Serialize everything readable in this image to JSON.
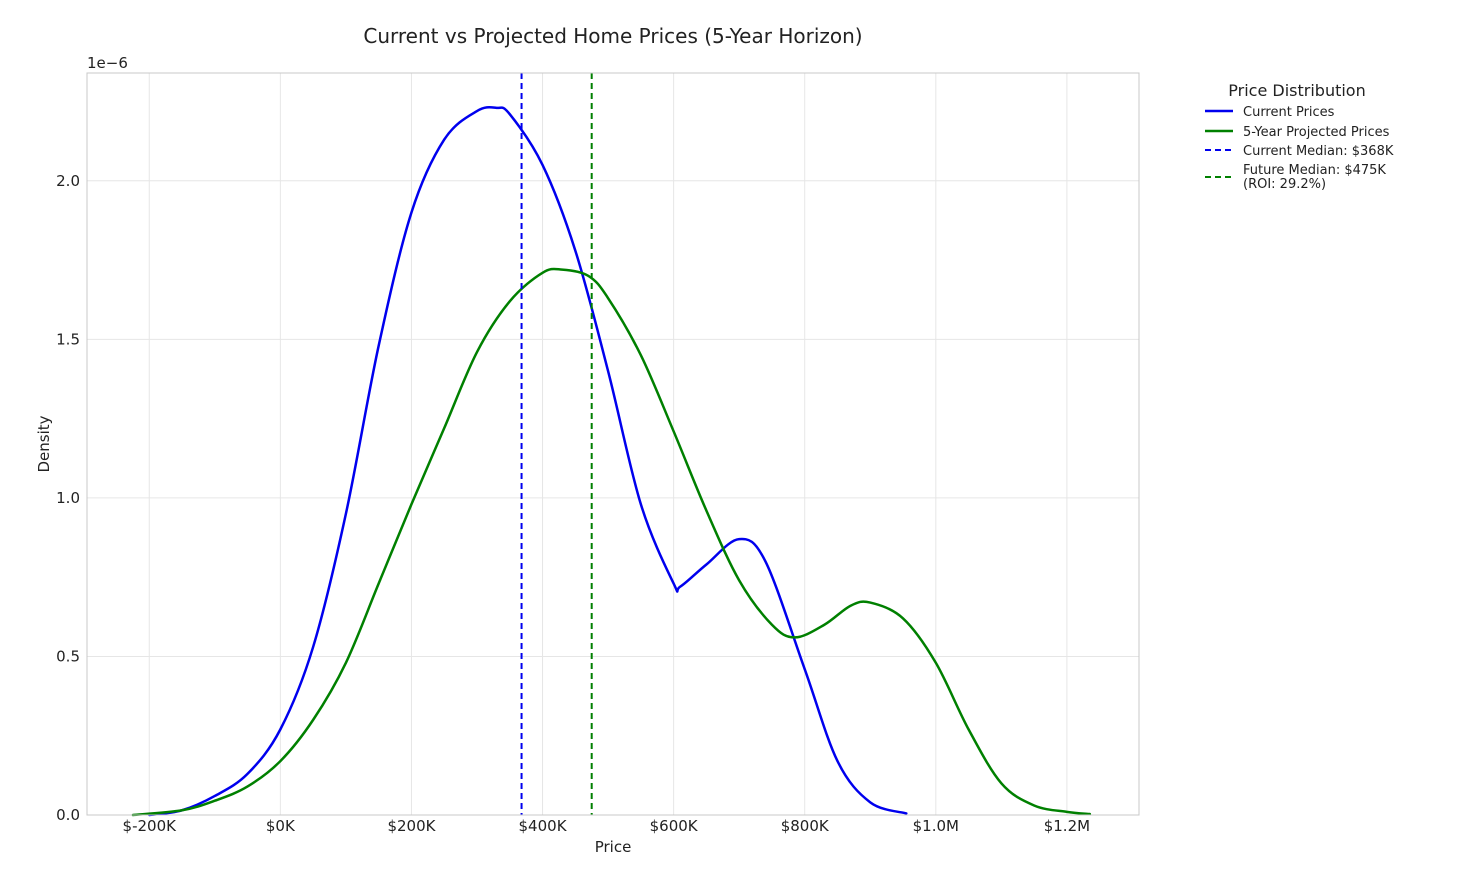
{
  "chart_data": {
    "type": "line",
    "title": "Current vs Projected Home Prices (5-Year Horizon)",
    "xlabel": "Price",
    "ylabel": "Density",
    "y_offset_label": "1e−6",
    "xlim": [
      -295000,
      1310000
    ],
    "ylim": [
      0,
      2.34
    ],
    "grid": true,
    "legend_placement": "outside-top-right",
    "x_ticks": [
      {
        "value": -200000,
        "label": "$-200K"
      },
      {
        "value": 0,
        "label": "$0K"
      },
      {
        "value": 200000,
        "label": "$200K"
      },
      {
        "value": 400000,
        "label": "$400K"
      },
      {
        "value": 600000,
        "label": "$600K"
      },
      {
        "value": 800000,
        "label": "$800K"
      },
      {
        "value": 1000000,
        "label": "$1.0M"
      },
      {
        "value": 1200000,
        "label": "$1.2M"
      }
    ],
    "y_ticks": [
      {
        "value": 0.0,
        "label": "0.0"
      },
      {
        "value": 0.5,
        "label": "0.5"
      },
      {
        "value": 1.0,
        "label": "1.0"
      },
      {
        "value": 1.5,
        "label": "1.5"
      },
      {
        "value": 2.0,
        "label": "2.0"
      }
    ],
    "legend_title": "Price Distribution",
    "series": [
      {
        "name": "Current Prices",
        "color": "#0000ee",
        "style": "solid",
        "points": [
          [
            -200000,
            0.0
          ],
          [
            -150000,
            0.015
          ],
          [
            -100000,
            0.06
          ],
          [
            -50000,
            0.13
          ],
          [
            0,
            0.27
          ],
          [
            50000,
            0.53
          ],
          [
            100000,
            0.95
          ],
          [
            150000,
            1.48
          ],
          [
            200000,
            1.9
          ],
          [
            250000,
            2.13
          ],
          [
            300000,
            2.22
          ],
          [
            330000,
            2.23
          ],
          [
            350000,
            2.21
          ],
          [
            400000,
            2.05
          ],
          [
            450000,
            1.78
          ],
          [
            500000,
            1.4
          ],
          [
            550000,
            0.98
          ],
          [
            600000,
            0.73
          ],
          [
            610000,
            0.72
          ],
          [
            650000,
            0.79
          ],
          [
            700000,
            0.87
          ],
          [
            740000,
            0.8
          ],
          [
            800000,
            0.46
          ],
          [
            850000,
            0.17
          ],
          [
            900000,
            0.04
          ],
          [
            955000,
            0.005
          ]
        ]
      },
      {
        "name": "5-Year Projected Prices",
        "color": "#008000",
        "style": "solid",
        "points": [
          [
            -225000,
            0.0
          ],
          [
            -150000,
            0.015
          ],
          [
            -100000,
            0.045
          ],
          [
            -50000,
            0.09
          ],
          [
            0,
            0.17
          ],
          [
            50000,
            0.3
          ],
          [
            100000,
            0.48
          ],
          [
            150000,
            0.73
          ],
          [
            200000,
            0.98
          ],
          [
            250000,
            1.22
          ],
          [
            300000,
            1.46
          ],
          [
            350000,
            1.62
          ],
          [
            400000,
            1.71
          ],
          [
            430000,
            1.72
          ],
          [
            470000,
            1.7
          ],
          [
            500000,
            1.63
          ],
          [
            550000,
            1.45
          ],
          [
            600000,
            1.21
          ],
          [
            650000,
            0.96
          ],
          [
            700000,
            0.74
          ],
          [
            750000,
            0.6
          ],
          [
            785000,
            0.56
          ],
          [
            830000,
            0.6
          ],
          [
            870000,
            0.66
          ],
          [
            900000,
            0.67
          ],
          [
            950000,
            0.62
          ],
          [
            1000000,
            0.48
          ],
          [
            1050000,
            0.27
          ],
          [
            1100000,
            0.1
          ],
          [
            1150000,
            0.03
          ],
          [
            1200000,
            0.01
          ],
          [
            1235000,
            0.003
          ]
        ]
      }
    ],
    "reference_lines": [
      {
        "name": "Current Median: $368K",
        "x": 368000,
        "color": "#0000ee",
        "style": "dashed"
      },
      {
        "name": "Future Median: $475K",
        "name_line2": "(ROI: 29.2%)",
        "x": 475000,
        "color": "#008000",
        "style": "dashed"
      }
    ]
  }
}
